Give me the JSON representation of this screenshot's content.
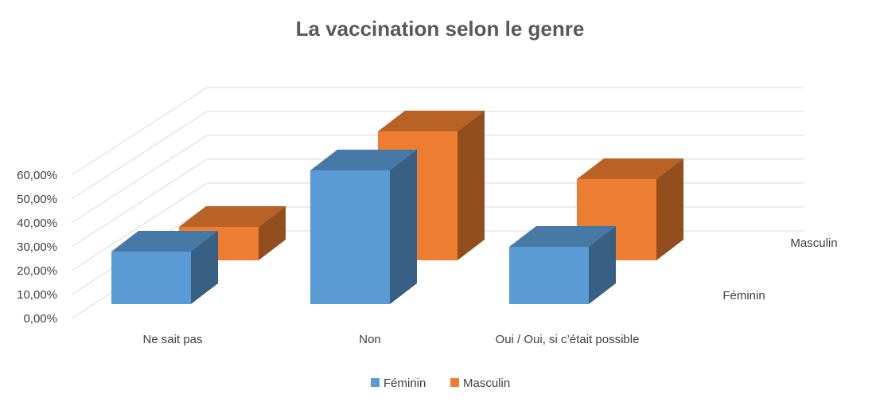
{
  "chart_data": {
    "type": "bar",
    "subtype": "3d-column",
    "title": "La vaccination selon le genre",
    "categories": [
      "Ne sait pas",
      "Non",
      "Oui / Oui, si c’était possible"
    ],
    "series": [
      {
        "name": "Féminin",
        "values": [
          0.22,
          0.56,
          0.24
        ],
        "color": "#5B9BD5"
      },
      {
        "name": "Masculin",
        "values": [
          0.14,
          0.54,
          0.34
        ],
        "color": "#ED7D31"
      }
    ],
    "y_ticks": [
      "0,00%",
      "10,00%",
      "20,00%",
      "30,00%",
      "40,00%",
      "50,00%",
      "60,00%"
    ],
    "ylim": [
      0,
      0.6
    ],
    "depth_labels": [
      "Féminin",
      "Masculin"
    ],
    "grid": true,
    "legend_position": "bottom"
  }
}
